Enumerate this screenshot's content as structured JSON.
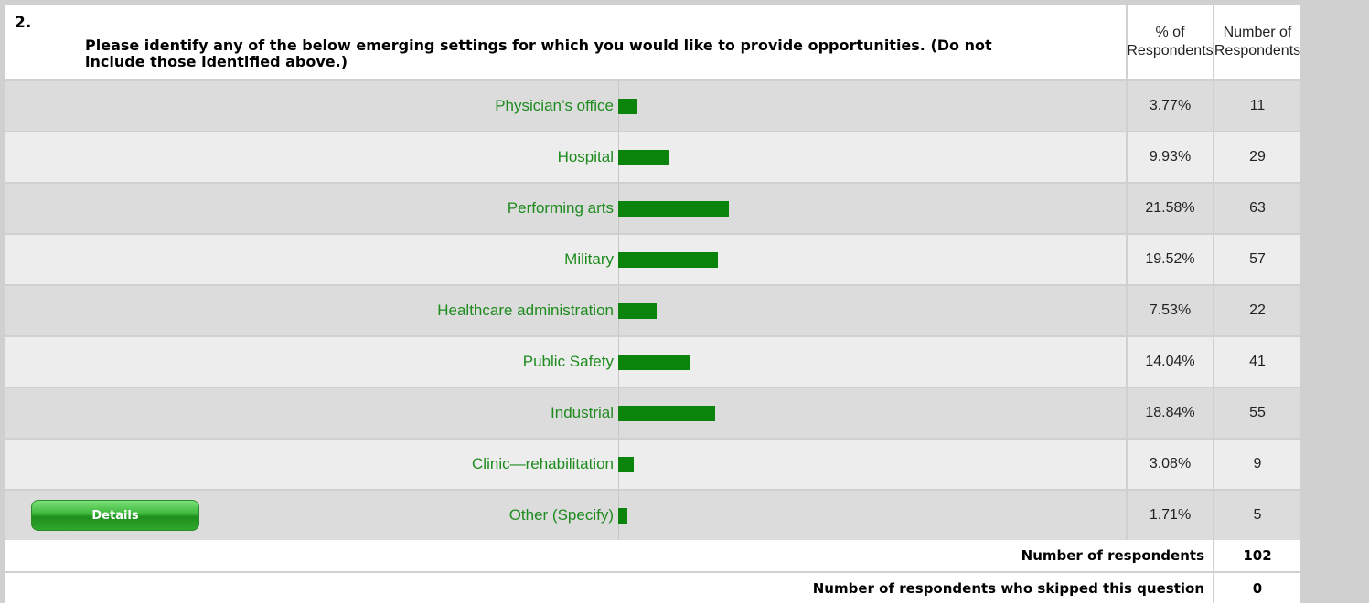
{
  "question": {
    "number": "2.",
    "text": "Please identify any of the below emerging settings for which you would like to provide opportunities. (Do not include those identified above.)"
  },
  "columns": {
    "pct_line1": "% of",
    "pct_line2": "Respondents",
    "num_line1": "Number of",
    "num_line2": "Respondents"
  },
  "chart_data": {
    "type": "bar",
    "categories": [
      "Physician’s office",
      "Hospital",
      "Performing arts",
      "Military",
      "Healthcare administration",
      "Public Safety",
      "Industrial",
      "Clinic—rehabilitation",
      "Other (Specify)"
    ],
    "values": [
      3.77,
      9.93,
      21.58,
      19.52,
      7.53,
      14.04,
      18.84,
      3.08,
      1.71
    ],
    "bar_color": "#0a840a",
    "label_color": "#1e8b1e"
  },
  "rows": [
    {
      "label": "Physician’s office",
      "pct": "3.77%",
      "count": "11"
    },
    {
      "label": "Hospital",
      "pct": "9.93%",
      "count": "29"
    },
    {
      "label": "Performing arts",
      "pct": "21.58%",
      "count": "63"
    },
    {
      "label": "Military",
      "pct": "19.52%",
      "count": "57"
    },
    {
      "label": "Healthcare administration",
      "pct": "7.53%",
      "count": "22"
    },
    {
      "label": "Public Safety",
      "pct": "14.04%",
      "count": "41"
    },
    {
      "label": "Industrial",
      "pct": "18.84%",
      "count": "55"
    },
    {
      "label": "Clinic—rehabilitation",
      "pct": "3.08%",
      "count": "9"
    },
    {
      "label": "Other (Specify)",
      "pct": "1.71%",
      "count": "5"
    }
  ],
  "details_button": "Details",
  "summary": {
    "respondents_label": "Number of respondents",
    "respondents_value": "102",
    "skipped_label": "Number of respondents who skipped this question",
    "skipped_value": "0"
  }
}
